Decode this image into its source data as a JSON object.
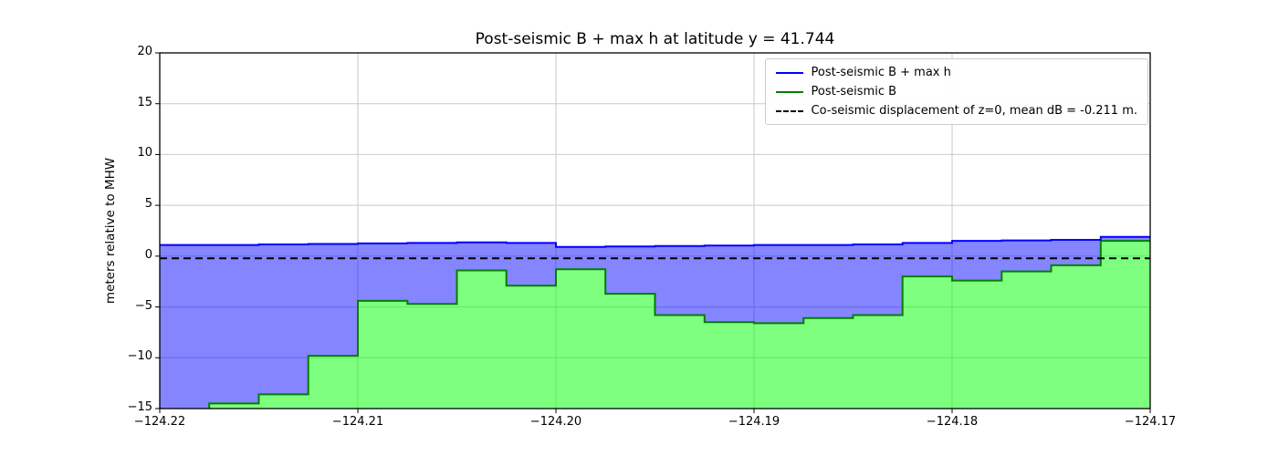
{
  "chart_data": {
    "type": "area",
    "title": "Post-seismic B + max h at latitude y = 41.744",
    "xlabel": "",
    "ylabel": "meters relative to MHW",
    "xlim": [
      -124.22,
      -124.17
    ],
    "ylim": [
      -15,
      20
    ],
    "grid": true,
    "xticks": [
      {
        "v": -124.22,
        "label": "−124.22"
      },
      {
        "v": -124.21,
        "label": "−124.21"
      },
      {
        "v": -124.2,
        "label": "−124.20"
      },
      {
        "v": -124.19,
        "label": "−124.19"
      },
      {
        "v": -124.18,
        "label": "−124.18"
      },
      {
        "v": -124.17,
        "label": "−124.17"
      }
    ],
    "yticks": [
      {
        "v": -15,
        "label": "−15"
      },
      {
        "v": -10,
        "label": "−10"
      },
      {
        "v": -5,
        "label": "−5"
      },
      {
        "v": 0,
        "label": "0"
      },
      {
        "v": 5,
        "label": "5"
      },
      {
        "v": 10,
        "label": "10"
      },
      {
        "v": 15,
        "label": "15"
      },
      {
        "v": 20,
        "label": "20"
      }
    ],
    "x_edges": [
      -124.22,
      -124.2175,
      -124.215,
      -124.2125,
      -124.21,
      -124.2075,
      -124.205,
      -124.2025,
      -124.2,
      -124.1975,
      -124.195,
      -124.1925,
      -124.19,
      -124.1875,
      -124.185,
      -124.1825,
      -124.18,
      -124.1775,
      -124.175,
      -124.1725,
      -124.17
    ],
    "series": [
      {
        "name": "Post-seismic B + max h",
        "line_color": "#0000ff",
        "fill_color": "rgba(0,0,255,0.48)",
        "values": [
          1.1,
          1.1,
          1.15,
          1.2,
          1.25,
          1.3,
          1.35,
          1.3,
          0.9,
          0.95,
          1.0,
          1.05,
          1.1,
          1.1,
          1.15,
          1.3,
          1.5,
          1.55,
          1.6,
          1.9
        ]
      },
      {
        "name": "Post-seismic B",
        "line_color": "#007f00",
        "fill_color": "rgba(0,255,0,0.5)",
        "values": [
          -15.3,
          -14.5,
          -13.6,
          -9.8,
          -4.4,
          -4.7,
          -1.4,
          -2.9,
          -1.3,
          -3.7,
          -5.8,
          -6.5,
          -6.6,
          -6.1,
          -5.8,
          -2.0,
          -2.4,
          -1.5,
          -0.9,
          1.5
        ]
      },
      {
        "name": "Co-seismic displacement of z=0",
        "line_color": "#000000",
        "style": "dashed",
        "value": -0.211
      }
    ],
    "legend": {
      "position": "upper right",
      "entries": [
        {
          "label": "Post-seismic B + max h",
          "color": "#0000ff",
          "dash": false
        },
        {
          "label": "Post-seismic B",
          "color": "#007f00",
          "dash": false
        },
        {
          "label": "Co-seismic displacement of z=0, mean dB = -0.211 m.",
          "color": "#000000",
          "dash": true
        }
      ]
    }
  }
}
